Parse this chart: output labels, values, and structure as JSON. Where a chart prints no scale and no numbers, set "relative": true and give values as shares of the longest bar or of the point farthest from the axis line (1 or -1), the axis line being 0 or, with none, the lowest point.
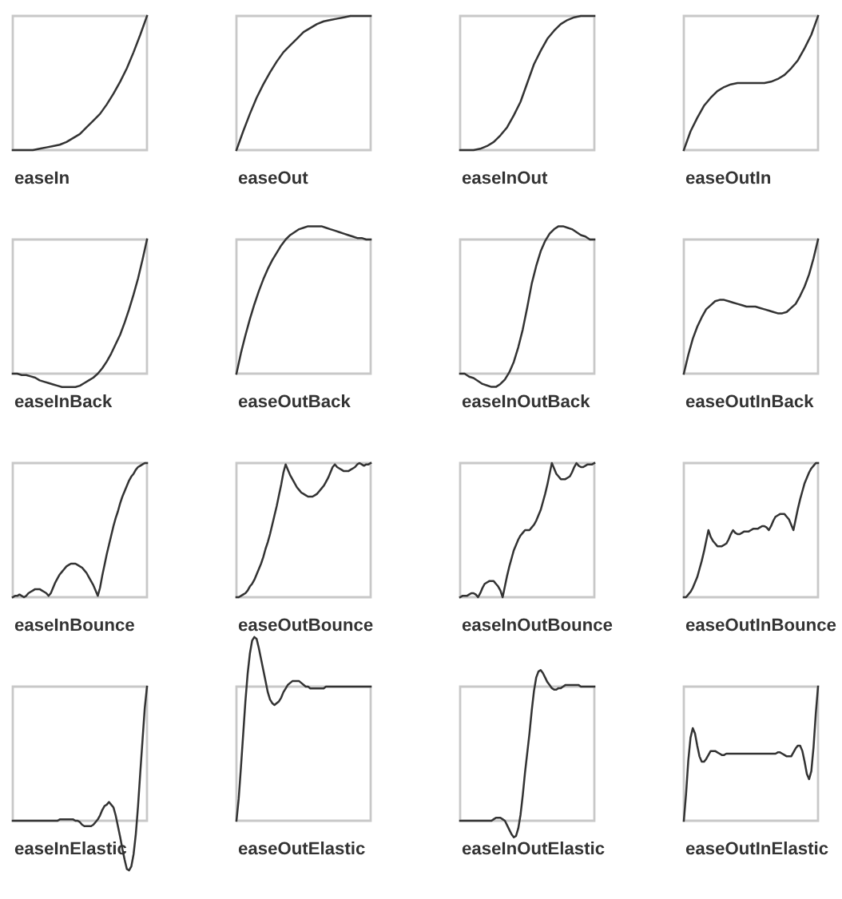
{
  "chart_data": [
    {
      "type": "line",
      "relative": true,
      "xlabel": "easeIn",
      "categories": [
        null,
        null,
        null,
        null,
        null,
        null,
        null,
        null,
        null,
        null,
        null,
        null,
        null,
        null,
        null,
        null,
        null,
        null,
        null,
        null,
        null
      ],
      "series": [
        {
          "color": "#333333",
          "values": [
            0,
            0,
            0,
            0,
            0.01,
            0.02,
            0.03,
            0.04,
            0.06,
            0.09,
            0.12,
            0.17,
            0.22,
            0.27,
            0.34,
            0.42,
            0.51,
            0.61,
            0.73,
            0.86,
            1
          ]
        }
      ]
    },
    {
      "type": "line",
      "relative": true,
      "xlabel": "easeOut",
      "categories": [
        null,
        null,
        null,
        null,
        null,
        null,
        null,
        null,
        null,
        null,
        null,
        null,
        null,
        null,
        null,
        null,
        null,
        null,
        null,
        null,
        null
      ],
      "series": [
        {
          "color": "#333333",
          "values": [
            0,
            0.14,
            0.27,
            0.39,
            0.49,
            0.58,
            0.66,
            0.73,
            0.78,
            0.83,
            0.88,
            0.91,
            0.94,
            0.96,
            0.97,
            0.98,
            0.99,
            1,
            1,
            1,
            1
          ]
        }
      ]
    },
    {
      "type": "line",
      "relative": true,
      "xlabel": "easeInOut",
      "categories": [
        null,
        null,
        null,
        null,
        null,
        null,
        null,
        null,
        null,
        null,
        null,
        null,
        null,
        null,
        null,
        null,
        null,
        null,
        null,
        null,
        null
      ],
      "series": [
        {
          "color": "#333333",
          "values": [
            0,
            0,
            0,
            0.01,
            0.03,
            0.06,
            0.11,
            0.17,
            0.26,
            0.36,
            0.5,
            0.64,
            0.74,
            0.83,
            0.89,
            0.94,
            0.97,
            0.99,
            1,
            1,
            1
          ]
        }
      ]
    },
    {
      "type": "line",
      "relative": true,
      "xlabel": "easeOutIn",
      "categories": [
        null,
        null,
        null,
        null,
        null,
        null,
        null,
        null,
        null,
        null,
        null,
        null,
        null,
        null,
        null,
        null,
        null,
        null,
        null,
        null,
        null
      ],
      "series": [
        {
          "color": "#333333",
          "values": [
            0,
            0.14,
            0.24,
            0.33,
            0.39,
            0.44,
            0.47,
            0.49,
            0.5,
            0.5,
            0.5,
            0.5,
            0.5,
            0.51,
            0.53,
            0.56,
            0.61,
            0.67,
            0.76,
            0.86,
            1
          ]
        }
      ]
    },
    {
      "type": "line",
      "relative": true,
      "xlabel": "easeInBack",
      "categories": [
        null,
        null,
        null,
        null,
        null,
        null,
        null,
        null,
        null,
        null,
        null,
        null,
        null,
        null,
        null,
        null,
        null,
        null,
        null,
        null,
        null,
        null,
        null,
        null,
        null,
        null,
        null,
        null,
        null,
        null,
        null
      ],
      "series": [
        {
          "color": "#333333",
          "values": [
            0,
            0,
            -0.01,
            -0.01,
            -0.02,
            -0.03,
            -0.05,
            -0.06,
            -0.07,
            -0.08,
            -0.09,
            -0.1,
            -0.1,
            -0.1,
            -0.1,
            -0.09,
            -0.07,
            -0.05,
            -0.03,
            0,
            0.04,
            0.09,
            0.15,
            0.22,
            0.29,
            0.38,
            0.48,
            0.59,
            0.71,
            0.85,
            1
          ]
        }
      ]
    },
    {
      "type": "line",
      "relative": true,
      "xlabel": "easeOutBack",
      "categories": [
        null,
        null,
        null,
        null,
        null,
        null,
        null,
        null,
        null,
        null,
        null,
        null,
        null,
        null,
        null,
        null,
        null,
        null,
        null,
        null,
        null,
        null,
        null,
        null,
        null,
        null,
        null,
        null,
        null,
        null,
        null
      ],
      "series": [
        {
          "color": "#333333",
          "values": [
            0,
            0.14,
            0.26,
            0.37,
            0.47,
            0.56,
            0.64,
            0.71,
            0.77,
            0.82,
            0.87,
            0.91,
            0.94,
            0.96,
            0.98,
            0.99,
            1,
            1,
            1,
            1,
            0.99,
            0.98,
            0.97,
            0.96,
            0.95,
            0.94,
            0.93,
            0.92,
            0.92,
            0.91,
            0.91
          ]
        }
      ]
    },
    {
      "type": "line",
      "relative": true,
      "xlabel": "easeInOutBack",
      "categories": [
        null,
        null,
        null,
        null,
        null,
        null,
        null,
        null,
        null,
        null,
        null,
        null,
        null,
        null,
        null,
        null,
        null,
        null,
        null,
        null,
        null,
        null,
        null,
        null,
        null,
        null,
        null,
        null,
        null,
        null,
        null
      ],
      "series": [
        {
          "color": "#333333",
          "values": [
            0,
            0,
            -0.02,
            -0.03,
            -0.05,
            -0.07,
            -0.08,
            -0.09,
            -0.09,
            -0.07,
            -0.04,
            0.01,
            0.08,
            0.18,
            0.3,
            0.45,
            0.61,
            0.73,
            0.83,
            0.9,
            0.95,
            0.98,
            1,
            1,
            0.99,
            0.98,
            0.96,
            0.94,
            0.93,
            0.91,
            0.91
          ]
        }
      ]
    },
    {
      "type": "line",
      "relative": true,
      "xlabel": "easeOutInBack",
      "categories": [
        null,
        null,
        null,
        null,
        null,
        null,
        null,
        null,
        null,
        null,
        null,
        null,
        null,
        null,
        null,
        null,
        null,
        null,
        null,
        null,
        null,
        null,
        null,
        null,
        null,
        null,
        null,
        null,
        null,
        null,
        null
      ],
      "series": [
        {
          "color": "#333333",
          "values": [
            0,
            0.14,
            0.26,
            0.35,
            0.42,
            0.48,
            0.51,
            0.54,
            0.55,
            0.55,
            0.54,
            0.53,
            0.52,
            0.51,
            0.5,
            0.5,
            0.5,
            0.49,
            0.48,
            0.47,
            0.46,
            0.45,
            0.45,
            0.46,
            0.49,
            0.52,
            0.58,
            0.65,
            0.74,
            0.86,
            1
          ]
        }
      ]
    },
    {
      "type": "line",
      "relative": true,
      "xlabel": "easeInBounce",
      "categories": [
        null,
        null,
        null,
        null,
        null,
        null,
        null,
        null,
        null,
        null,
        null,
        null,
        null,
        null,
        null,
        null,
        null,
        null,
        null,
        null,
        null,
        null,
        null,
        null,
        null,
        null,
        null,
        null,
        null,
        null,
        null,
        null,
        null,
        null,
        null,
        null,
        null,
        null,
        null,
        null,
        null,
        null,
        null,
        null,
        null,
        null,
        null,
        null,
        null,
        null,
        null,
        null,
        null,
        null,
        null,
        null,
        null,
        null,
        null,
        null,
        null
      ],
      "series": [
        {
          "color": "#333333",
          "values": [
            0,
            0.01,
            0.01,
            0.02,
            0.01,
            0,
            0.01,
            0.03,
            0.04,
            0.05,
            0.06,
            0.06,
            0.06,
            0.05,
            0.04,
            0.03,
            0.01,
            0.03,
            0.07,
            0.11,
            0.14,
            0.17,
            0.19,
            0.21,
            0.23,
            0.24,
            0.25,
            0.25,
            0.25,
            0.24,
            0.23,
            0.22,
            0.2,
            0.18,
            0.15,
            0.12,
            0.09,
            0.05,
            0.01,
            0.07,
            0.16,
            0.24,
            0.32,
            0.39,
            0.46,
            0.53,
            0.59,
            0.64,
            0.7,
            0.75,
            0.79,
            0.83,
            0.87,
            0.9,
            0.92,
            0.95,
            0.97,
            0.98,
            0.99,
            1,
            1
          ]
        }
      ]
    },
    {
      "type": "line",
      "relative": true,
      "xlabel": "easeOutBounce",
      "categories": [
        null,
        null,
        null,
        null,
        null,
        null,
        null,
        null,
        null,
        null,
        null,
        null,
        null,
        null,
        null,
        null,
        null,
        null,
        null,
        null,
        null,
        null,
        null,
        null,
        null,
        null,
        null,
        null,
        null,
        null,
        null,
        null,
        null,
        null,
        null,
        null,
        null,
        null,
        null,
        null,
        null,
        null,
        null,
        null,
        null,
        null,
        null,
        null,
        null,
        null,
        null,
        null,
        null,
        null,
        null,
        null,
        null,
        null,
        null,
        null,
        null
      ],
      "series": [
        {
          "color": "#333333",
          "values": [
            0,
            0,
            0.01,
            0.02,
            0.03,
            0.05,
            0.08,
            0.1,
            0.13,
            0.17,
            0.21,
            0.25,
            0.3,
            0.36,
            0.41,
            0.47,
            0.54,
            0.61,
            0.68,
            0.76,
            0.84,
            0.93,
            0.99,
            0.95,
            0.91,
            0.88,
            0.85,
            0.82,
            0.8,
            0.78,
            0.77,
            0.76,
            0.75,
            0.75,
            0.75,
            0.76,
            0.77,
            0.79,
            0.81,
            0.83,
            0.86,
            0.89,
            0.93,
            0.97,
            0.99,
            0.97,
            0.96,
            0.95,
            0.94,
            0.94,
            0.94,
            0.95,
            0.96,
            0.97,
            0.99,
            1,
            0.99,
            0.98,
            0.99,
            0.99,
            1
          ]
        }
      ]
    },
    {
      "type": "line",
      "relative": true,
      "xlabel": "easeInOutBounce",
      "categories": [
        null,
        null,
        null,
        null,
        null,
        null,
        null,
        null,
        null,
        null,
        null,
        null,
        null,
        null,
        null,
        null,
        null,
        null,
        null,
        null,
        null,
        null,
        null,
        null,
        null,
        null,
        null,
        null,
        null,
        null,
        null,
        null,
        null,
        null,
        null,
        null,
        null,
        null,
        null,
        null,
        null,
        null,
        null,
        null,
        null,
        null,
        null,
        null,
        null,
        null,
        null,
        null,
        null,
        null,
        null,
        null,
        null,
        null,
        null,
        null,
        null
      ],
      "series": [
        {
          "color": "#333333",
          "values": [
            0,
            0.01,
            0.01,
            0.01,
            0.02,
            0.03,
            0.03,
            0.02,
            0,
            0.03,
            0.07,
            0.1,
            0.11,
            0.12,
            0.12,
            0.12,
            0.1,
            0.08,
            0.05,
            0,
            0.08,
            0.16,
            0.23,
            0.29,
            0.35,
            0.39,
            0.43,
            0.46,
            0.48,
            0.5,
            0.5,
            0.5,
            0.52,
            0.54,
            0.57,
            0.61,
            0.65,
            0.71,
            0.77,
            0.84,
            0.92,
            1,
            0.96,
            0.92,
            0.9,
            0.88,
            0.88,
            0.88,
            0.89,
            0.9,
            0.93,
            0.97,
            1,
            0.98,
            0.97,
            0.97,
            0.98,
            0.99,
            0.99,
            0.99,
            1
          ]
        }
      ]
    },
    {
      "type": "line",
      "relative": true,
      "xlabel": "easeOutInBounce",
      "categories": [
        null,
        null,
        null,
        null,
        null,
        null,
        null,
        null,
        null,
        null,
        null,
        null,
        null,
        null,
        null,
        null,
        null,
        null,
        null,
        null,
        null,
        null,
        null,
        null,
        null,
        null,
        null,
        null,
        null,
        null,
        null,
        null,
        null,
        null,
        null,
        null,
        null,
        null,
        null,
        null,
        null,
        null,
        null,
        null,
        null,
        null,
        null,
        null,
        null,
        null,
        null,
        null,
        null,
        null,
        null,
        null,
        null,
        null,
        null,
        null,
        null
      ],
      "series": [
        {
          "color": "#333333",
          "values": [
            0,
            0,
            0.02,
            0.04,
            0.07,
            0.11,
            0.15,
            0.21,
            0.27,
            0.34,
            0.42,
            0.5,
            0.45,
            0.42,
            0.4,
            0.38,
            0.38,
            0.38,
            0.39,
            0.4,
            0.43,
            0.47,
            0.5,
            0.48,
            0.47,
            0.47,
            0.48,
            0.49,
            0.49,
            0.49,
            0.5,
            0.51,
            0.51,
            0.51,
            0.52,
            0.53,
            0.53,
            0.52,
            0.5,
            0.53,
            0.57,
            0.6,
            0.61,
            0.62,
            0.62,
            0.62,
            0.6,
            0.58,
            0.54,
            0.5,
            0.58,
            0.66,
            0.73,
            0.79,
            0.85,
            0.89,
            0.93,
            0.96,
            0.98,
            1,
            1
          ]
        }
      ]
    },
    {
      "type": "line",
      "relative": true,
      "xlabel": "easeInElastic",
      "categories": [
        null,
        null,
        null,
        null,
        null,
        null,
        null,
        null,
        null,
        null,
        null,
        null,
        null,
        null,
        null,
        null,
        null,
        null,
        null,
        null,
        null,
        null,
        null,
        null,
        null,
        null,
        null,
        null,
        null,
        null,
        null,
        null,
        null,
        null,
        null,
        null,
        null,
        null,
        null,
        null,
        null,
        null,
        null,
        null,
        null,
        null,
        null,
        null,
        null,
        null,
        null,
        null,
        null,
        null,
        null,
        null,
        null,
        null,
        null,
        null,
        null
      ],
      "series": [
        {
          "color": "#333333",
          "values": [
            0,
            0,
            0,
            0,
            0,
            0,
            0,
            0,
            0,
            0,
            0,
            0,
            0,
            0,
            0,
            0,
            0,
            0,
            0,
            0,
            0,
            0.01,
            0.01,
            0.01,
            0.01,
            0.01,
            0.01,
            0.01,
            0,
            0,
            -0.01,
            -0.03,
            -0.04,
            -0.04,
            -0.04,
            -0.04,
            -0.03,
            -0.01,
            0.01,
            0.04,
            0.08,
            0.11,
            0.12,
            0.14,
            0.12,
            0.1,
            0.04,
            -0.04,
            -0.12,
            -0.21,
            -0.29,
            -0.36,
            -0.37,
            -0.34,
            -0.25,
            -0.1,
            0.11,
            0.36,
            0.6,
            0.84,
            1
          ]
        }
      ]
    },
    {
      "type": "line",
      "relative": true,
      "xlabel": "easeOutElastic",
      "categories": [
        null,
        null,
        null,
        null,
        null,
        null,
        null,
        null,
        null,
        null,
        null,
        null,
        null,
        null,
        null,
        null,
        null,
        null,
        null,
        null,
        null,
        null,
        null,
        null,
        null,
        null,
        null,
        null,
        null,
        null,
        null,
        null,
        null,
        null,
        null,
        null,
        null,
        null,
        null,
        null,
        null,
        null,
        null,
        null,
        null,
        null,
        null,
        null,
        null,
        null,
        null,
        null,
        null,
        null,
        null,
        null,
        null,
        null,
        null,
        null,
        null
      ],
      "series": [
        {
          "color": "#333333",
          "values": [
            0,
            0.12,
            0.29,
            0.47,
            0.65,
            0.8,
            0.91,
            0.98,
            1,
            0.99,
            0.94,
            0.88,
            0.82,
            0.76,
            0.7,
            0.66,
            0.64,
            0.63,
            0.64,
            0.65,
            0.67,
            0.7,
            0.72,
            0.74,
            0.75,
            0.76,
            0.76,
            0.76,
            0.76,
            0.75,
            0.74,
            0.73,
            0.73,
            0.72,
            0.72,
            0.72,
            0.72,
            0.72,
            0.72,
            0.72,
            0.73,
            0.73,
            0.73,
            0.73,
            0.73,
            0.73,
            0.73,
            0.73,
            0.73,
            0.73,
            0.73,
            0.73,
            0.73,
            0.73,
            0.73,
            0.73,
            0.73,
            0.73,
            0.73,
            0.73,
            0.73
          ]
        }
      ]
    },
    {
      "type": "line",
      "relative": true,
      "xlabel": "easeInOutElastic",
      "categories": [
        null,
        null,
        null,
        null,
        null,
        null,
        null,
        null,
        null,
        null,
        null,
        null,
        null,
        null,
        null,
        null,
        null,
        null,
        null,
        null,
        null,
        null,
        null,
        null,
        null,
        null,
        null,
        null,
        null,
        null,
        null,
        null,
        null,
        null,
        null,
        null,
        null,
        null,
        null,
        null,
        null,
        null,
        null,
        null,
        null,
        null,
        null,
        null,
        null,
        null,
        null,
        null,
        null,
        null,
        null,
        null,
        null,
        null,
        null,
        null,
        null
      ],
      "series": [
        {
          "color": "#333333",
          "values": [
            0,
            0,
            0,
            0,
            0,
            0,
            0,
            0,
            0,
            0,
            0,
            0,
            0,
            0,
            0,
            0.01,
            0.02,
            0.02,
            0.02,
            0.01,
            0,
            -0.03,
            -0.06,
            -0.09,
            -0.11,
            -0.1,
            -0.05,
            0.04,
            0.17,
            0.32,
            0.45,
            0.58,
            0.73,
            0.86,
            0.95,
            0.99,
            1,
            0.98,
            0.95,
            0.92,
            0.9,
            0.88,
            0.87,
            0.87,
            0.88,
            0.88,
            0.89,
            0.9,
            0.9,
            0.9,
            0.9,
            0.9,
            0.9,
            0.9,
            0.89,
            0.89,
            0.89,
            0.89,
            0.89,
            0.89,
            0.89
          ]
        }
      ]
    },
    {
      "type": "line",
      "relative": true,
      "xlabel": "easeOutInElastic",
      "categories": [
        null,
        null,
        null,
        null,
        null,
        null,
        null,
        null,
        null,
        null,
        null,
        null,
        null,
        null,
        null,
        null,
        null,
        null,
        null,
        null,
        null,
        null,
        null,
        null,
        null,
        null,
        null,
        null,
        null,
        null,
        null,
        null,
        null,
        null,
        null,
        null,
        null,
        null,
        null,
        null,
        null,
        null,
        null,
        null,
        null,
        null,
        null,
        null,
        null,
        null,
        null,
        null,
        null,
        null,
        null,
        null,
        null,
        null,
        null,
        null,
        null
      ],
      "series": [
        {
          "color": "#333333",
          "values": [
            0,
            0.2,
            0.45,
            0.62,
            0.69,
            0.65,
            0.56,
            0.48,
            0.44,
            0.44,
            0.46,
            0.49,
            0.52,
            0.52,
            0.52,
            0.51,
            0.5,
            0.49,
            0.49,
            0.5,
            0.5,
            0.5,
            0.5,
            0.5,
            0.5,
            0.5,
            0.5,
            0.5,
            0.5,
            0.5,
            0.5,
            0.5,
            0.5,
            0.5,
            0.5,
            0.5,
            0.5,
            0.5,
            0.5,
            0.5,
            0.5,
            0.5,
            0.51,
            0.51,
            0.5,
            0.49,
            0.48,
            0.48,
            0.48,
            0.51,
            0.54,
            0.56,
            0.56,
            0.52,
            0.44,
            0.35,
            0.31,
            0.37,
            0.55,
            0.8,
            1
          ]
        }
      ]
    }
  ]
}
